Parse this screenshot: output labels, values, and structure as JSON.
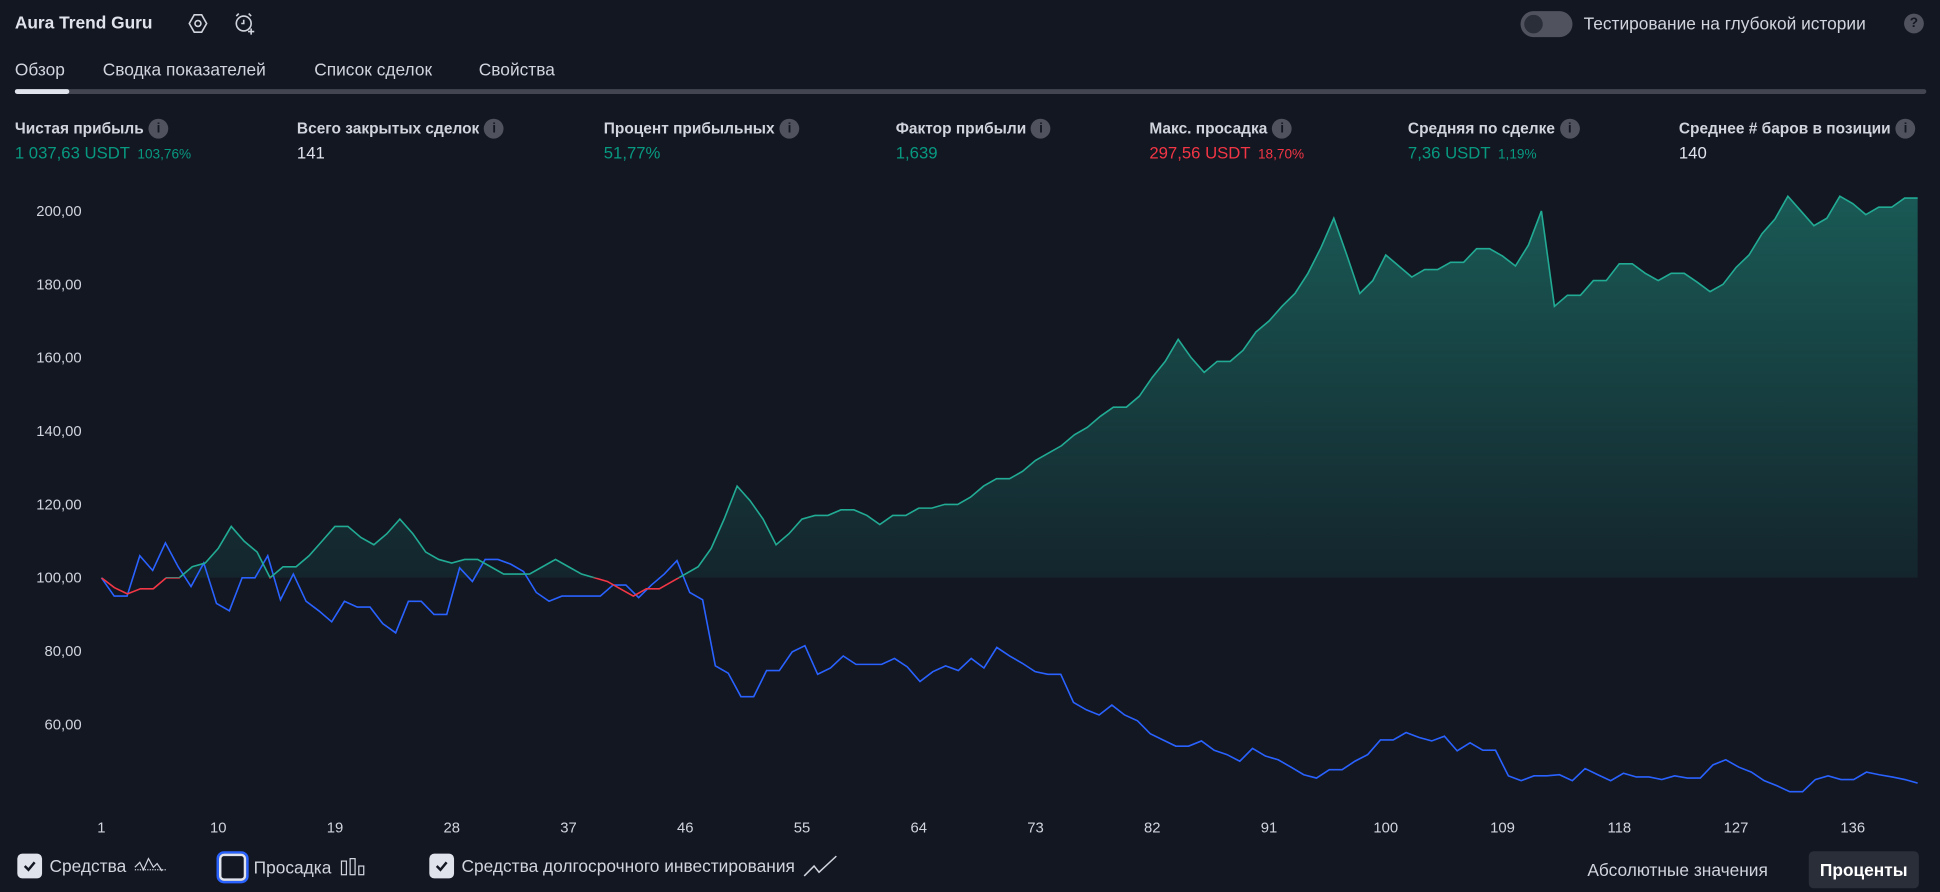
{
  "header": {
    "title": "Aura Trend Guru",
    "deep_history_label": "Тестирование на глубокой истории",
    "deep_history_enabled": false,
    "help_glyph": "?"
  },
  "tabs": [
    {
      "label": "Обзор",
      "active": true
    },
    {
      "label": "Сводка показателей"
    },
    {
      "label": "Список сделок"
    },
    {
      "label": "Свойства"
    }
  ],
  "stats": [
    {
      "label": "Чистая прибыль",
      "value": "1 037,63 USDT",
      "sub": "103,76%",
      "tone": "pos"
    },
    {
      "label": "Всего закрытых сделок",
      "value": "141",
      "sub": "",
      "tone": "neu"
    },
    {
      "label": "Процент прибыльных",
      "value": "51,77%",
      "sub": "",
      "tone": "pos"
    },
    {
      "label": "Фактор прибыли",
      "value": "1,639",
      "sub": "",
      "tone": "pos"
    },
    {
      "label": "Макс. просадка",
      "value": "297,56 USDT",
      "sub": "18,70%",
      "tone": "neg"
    },
    {
      "label": "Средняя по сделке",
      "value": "7,36 USDT",
      "sub": "1,19%",
      "tone": "pos"
    },
    {
      "label": "Среднее # баров в позиции",
      "value": "140",
      "sub": "",
      "tone": "neu"
    }
  ],
  "info_glyph": "i",
  "chart_data": {
    "type": "line",
    "ylim": [
      40,
      205
    ],
    "xlim": [
      1,
      141
    ],
    "yticks": [
      "200,00",
      "180,00",
      "160,00",
      "140,00",
      "120,00",
      "100,00",
      "80,00",
      "60,00"
    ],
    "ytick_values": [
      200,
      180,
      160,
      140,
      120,
      100,
      80,
      60
    ],
    "xticks": [
      "1",
      "10",
      "19",
      "28",
      "37",
      "46",
      "55",
      "64",
      "73",
      "82",
      "91",
      "100",
      "109",
      "118",
      "127",
      "136"
    ],
    "baseline": 100,
    "colors": {
      "equity_up": "#22ab94",
      "equity_down": "#f23645",
      "buy_hold": "#2962ff",
      "background": "#131722"
    },
    "series": [
      {
        "name": "Средства",
        "values": [
          100,
          97.3,
          95.6,
          97,
          97,
          100,
          100,
          103,
          104,
          108,
          114,
          110,
          107,
          100,
          103,
          103,
          106,
          110,
          114,
          114,
          111,
          109,
          112,
          116,
          112,
          107,
          105,
          104,
          105,
          105,
          103,
          101,
          101,
          101,
          103,
          105,
          103,
          101,
          100,
          99,
          97,
          95,
          97,
          97,
          99,
          101,
          103,
          108,
          116,
          125,
          121,
          116,
          109,
          112,
          116,
          117,
          117,
          118.5,
          118.5,
          117,
          114.5,
          117,
          117,
          119,
          119,
          120,
          120,
          122,
          125,
          127,
          127,
          129,
          132,
          134,
          136,
          139,
          141,
          144,
          146.5,
          146.5,
          149.5,
          154.6,
          159,
          165,
          160,
          156,
          159,
          159,
          162,
          167,
          170,
          174,
          177.5,
          183,
          190,
          198,
          188,
          177.5,
          181,
          188,
          185,
          182,
          184,
          184,
          186,
          186,
          189.7,
          189.7,
          187.7,
          185,
          190.7,
          200,
          174,
          177,
          177,
          181,
          181,
          185.6,
          185.6,
          183,
          181,
          183,
          183,
          180.6,
          178,
          180,
          184.6,
          188,
          193.8,
          197.8,
          204,
          200,
          196,
          198,
          204,
          202,
          199,
          201,
          201,
          203.5,
          203.5
        ]
      },
      {
        "name": "Средства долгосрочного инвестирования",
        "values": [
          100,
          95,
          95,
          106,
          102,
          109.5,
          103,
          97.6,
          104,
          93,
          91,
          100,
          100,
          106,
          94,
          101,
          93.6,
          91,
          88,
          93.6,
          92,
          92,
          87.5,
          85,
          93.6,
          93.6,
          90,
          90,
          102.7,
          99,
          105,
          105,
          103.7,
          101.7,
          96,
          93.6,
          95,
          95,
          95,
          95,
          98,
          98,
          94.6,
          98,
          101,
          104.7,
          96,
          94,
          76,
          74,
          67.6,
          67.6,
          74.7,
          74.7,
          79.8,
          81.5,
          73.7,
          75.4,
          78.7,
          76.4,
          76.4,
          76.4,
          78,
          75.7,
          71.7,
          74.4,
          76,
          74.7,
          78,
          75.4,
          81,
          78.7,
          76.7,
          74.4,
          73.7,
          73.7,
          66,
          64,
          62.6,
          65.3,
          62.6,
          61,
          57.5,
          55.8,
          54.1,
          54.1,
          55.5,
          53,
          51.8,
          50,
          53.5,
          51.4,
          50.4,
          48.4,
          46.3,
          45.4,
          47.7,
          47.7,
          50,
          51.8,
          55.8,
          55.8,
          57.8,
          56.5,
          55.5,
          56.8,
          52.8,
          55,
          53,
          53,
          46,
          44.7,
          46,
          46,
          46.3,
          44.7,
          48,
          46.3,
          44.7,
          46.7,
          45.7,
          45.7,
          45,
          46,
          45.4,
          45.4,
          49,
          50.4,
          48.4,
          47,
          44.7,
          43.3,
          41.7,
          41.7,
          45,
          46,
          45,
          45,
          47,
          46.3,
          45.7,
          45,
          44
        ]
      }
    ]
  },
  "legend": [
    {
      "label": "Средства",
      "checked": true,
      "icon": "equity-wave-icon"
    },
    {
      "label": "Просадка",
      "checked": false,
      "icon": "drawdown-bars-icon"
    },
    {
      "label": "Средства долгосрочного инвестирования",
      "checked": true,
      "icon": "buy-hold-line-icon"
    }
  ],
  "scale_toggle": {
    "absolute_label": "Абсолютные значения",
    "percent_label": "Проценты",
    "selected": "percent"
  }
}
